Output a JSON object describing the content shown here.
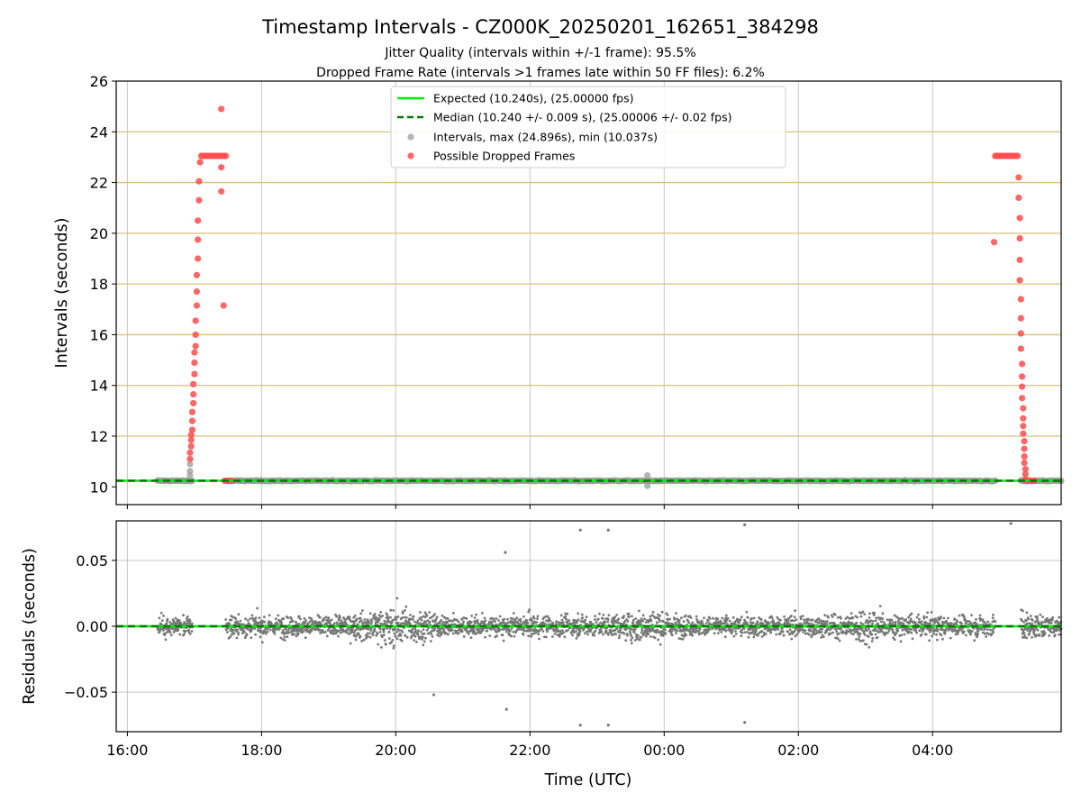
{
  "chart_data": [
    {
      "type": "scatter",
      "title": "Timestamp Intervals - CZ000K_20250201_162651_384298",
      "subtitle_1": "Jitter Quality (intervals within +/-1 frame): 95.5%",
      "subtitle_2": "Dropped Frame Rate (intervals >1 frames late within 50 FF files): 6.2%",
      "xlabel": "",
      "ylabel": "Intervals (seconds)",
      "xlim": [
        "2025-02-01 15:50",
        "2025-02-02 05:55"
      ],
      "ylim": [
        9.3,
        26
      ],
      "y_ticks": [
        "10",
        "12",
        "14",
        "16",
        "18",
        "20",
        "22",
        "24",
        "26"
      ],
      "x_tick_times": [
        "2025-02-01 16:00",
        "2025-02-01 18:00",
        "2025-02-01 20:00",
        "2025-02-01 22:00",
        "2025-02-02 00:00",
        "2025-02-02 02:00",
        "2025-02-02 04:00"
      ],
      "grid": true,
      "horizontal_frame_lines_color": "#d8c07a",
      "legend": {
        "placement": "top-center",
        "entries": [
          {
            "label": "Expected (10.240s), (25.00000 fps)",
            "style": "solid-line",
            "color": "#00ee00"
          },
          {
            "label": "Median (10.240 +/- 0.009 s), (25.00006 +/- 0.02 fps)",
            "style": "dashed-line",
            "color": "#007700"
          },
          {
            "label": "Intervals, max (24.896s), min (10.037s)",
            "style": "marker",
            "color": "#999999"
          },
          {
            "label": "Possible Dropped Frames",
            "style": "marker",
            "color": "#ff4c4c"
          }
        ]
      },
      "series": [
        {
          "name": "Expected (10.240s), (25.00000 fps)",
          "kind": "hline",
          "y": 10.24,
          "color": "#00ee00"
        },
        {
          "name": "Median (10.240 +/- 0.009 s), (25.00006 +/- 0.02 fps)",
          "kind": "hline",
          "y": 10.24,
          "color": "#007700"
        },
        {
          "name": "Intervals, max (24.896s), min (10.037s)",
          "kind": "scatter",
          "color": "#999999",
          "segments": [
            [
              "2025-02-01 16:27",
              "2025-02-01 16:58"
            ],
            [
              "2025-02-01 17:28",
              "2025-02-02 04:56"
            ],
            [
              "2025-02-02 05:19",
              "2025-02-02 05:55"
            ]
          ],
          "typical_y": 10.24,
          "points": [
            {
              "x": "2025-02-01 16:56",
              "y": 10.45
            },
            {
              "x": "2025-02-01 16:56",
              "y": 10.62
            },
            {
              "x": "2025-02-01 16:56",
              "y": 10.9
            },
            {
              "x": "2025-02-01 23:45",
              "y": 10.45
            },
            {
              "x": "2025-02-01 23:45",
              "y": 10.04
            }
          ]
        },
        {
          "name": "Possible Dropped Frames",
          "kind": "scatter",
          "color": "#ff4c4c",
          "points": [
            {
              "x": "2025-02-01 16:56",
              "y": 11.1
            },
            {
              "x": "2025-02-01 16:56",
              "y": 11.35
            },
            {
              "x": "2025-02-01 16:57",
              "y": 11.6
            },
            {
              "x": "2025-02-01 16:57",
              "y": 11.85
            },
            {
              "x": "2025-02-01 16:57",
              "y": 12.05
            },
            {
              "x": "2025-02-01 16:58",
              "y": 12.25
            },
            {
              "x": "2025-02-01 16:58",
              "y": 12.6
            },
            {
              "x": "2025-02-01 16:58",
              "y": 12.95
            },
            {
              "x": "2025-02-01 16:59",
              "y": 13.3
            },
            {
              "x": "2025-02-01 16:59",
              "y": 13.65
            },
            {
              "x": "2025-02-01 16:59",
              "y": 14.05
            },
            {
              "x": "2025-02-01 17:00",
              "y": 14.45
            },
            {
              "x": "2025-02-01 17:00",
              "y": 14.9
            },
            {
              "x": "2025-02-01 17:00",
              "y": 15.3
            },
            {
              "x": "2025-02-01 17:01",
              "y": 15.55
            },
            {
              "x": "2025-02-01 17:01",
              "y": 16.0
            },
            {
              "x": "2025-02-01 17:01",
              "y": 16.55
            },
            {
              "x": "2025-02-01 17:02",
              "y": 17.15
            },
            {
              "x": "2025-02-01 17:02",
              "y": 17.7
            },
            {
              "x": "2025-02-01 17:02",
              "y": 18.35
            },
            {
              "x": "2025-02-01 17:03",
              "y": 19.0
            },
            {
              "x": "2025-02-01 17:03",
              "y": 19.75
            },
            {
              "x": "2025-02-01 17:03",
              "y": 20.5
            },
            {
              "x": "2025-02-01 17:04",
              "y": 21.3
            },
            {
              "x": "2025-02-01 17:04",
              "y": 22.05
            },
            {
              "x": "2025-02-01 17:05",
              "y": 22.8
            },
            {
              "x": "2025-02-01 17:06",
              "y": 23.05
            },
            {
              "x": "2025-02-01 17:08",
              "y": 23.05
            },
            {
              "x": "2025-02-01 17:10",
              "y": 23.05
            },
            {
              "x": "2025-02-01 17:12",
              "y": 23.05
            },
            {
              "x": "2025-02-01 17:14",
              "y": 23.05
            },
            {
              "x": "2025-02-01 17:16",
              "y": 23.05
            },
            {
              "x": "2025-02-01 17:18",
              "y": 23.05
            },
            {
              "x": "2025-02-01 17:20",
              "y": 23.05
            },
            {
              "x": "2025-02-01 17:22",
              "y": 23.05
            },
            {
              "x": "2025-02-01 17:24",
              "y": 23.05
            },
            {
              "x": "2025-02-01 17:26",
              "y": 23.05
            },
            {
              "x": "2025-02-01 17:28",
              "y": 23.05
            },
            {
              "x": "2025-02-01 17:24",
              "y": 24.9
            },
            {
              "x": "2025-02-01 17:24",
              "y": 22.6
            },
            {
              "x": "2025-02-01 17:24",
              "y": 21.65
            },
            {
              "x": "2025-02-01 17:26",
              "y": 17.15
            },
            {
              "x": "2025-02-01 17:27",
              "y": 10.24
            },
            {
              "x": "2025-02-01 17:29",
              "y": 10.24
            },
            {
              "x": "2025-02-01 17:31",
              "y": 10.24
            },
            {
              "x": "2025-02-01 17:33",
              "y": 10.24
            },
            {
              "x": "2025-02-02 04:55",
              "y": 19.65
            },
            {
              "x": "2025-02-02 04:56",
              "y": 23.05
            },
            {
              "x": "2025-02-02 04:58",
              "y": 23.05
            },
            {
              "x": "2025-02-02 05:00",
              "y": 23.05
            },
            {
              "x": "2025-02-02 05:02",
              "y": 23.05
            },
            {
              "x": "2025-02-02 05:04",
              "y": 23.05
            },
            {
              "x": "2025-02-02 05:06",
              "y": 23.05
            },
            {
              "x": "2025-02-02 05:08",
              "y": 23.05
            },
            {
              "x": "2025-02-02 05:10",
              "y": 23.05
            },
            {
              "x": "2025-02-02 05:12",
              "y": 23.05
            },
            {
              "x": "2025-02-02 05:14",
              "y": 23.05
            },
            {
              "x": "2025-02-02 05:16",
              "y": 23.05
            },
            {
              "x": "2025-02-02 05:17",
              "y": 22.2
            },
            {
              "x": "2025-02-02 05:17",
              "y": 21.4
            },
            {
              "x": "2025-02-02 05:18",
              "y": 20.6
            },
            {
              "x": "2025-02-02 05:18",
              "y": 19.8
            },
            {
              "x": "2025-02-02 05:18",
              "y": 18.95
            },
            {
              "x": "2025-02-02 05:18",
              "y": 18.15
            },
            {
              "x": "2025-02-02 05:19",
              "y": 17.4
            },
            {
              "x": "2025-02-02 05:19",
              "y": 16.65
            },
            {
              "x": "2025-02-02 05:19",
              "y": 16.05
            },
            {
              "x": "2025-02-02 05:19",
              "y": 15.45
            },
            {
              "x": "2025-02-02 05:20",
              "y": 14.85
            },
            {
              "x": "2025-02-02 05:20",
              "y": 14.35
            },
            {
              "x": "2025-02-02 05:20",
              "y": 13.95
            },
            {
              "x": "2025-02-02 05:20",
              "y": 13.5
            },
            {
              "x": "2025-02-02 05:21",
              "y": 13.1
            },
            {
              "x": "2025-02-02 05:21",
              "y": 12.7
            },
            {
              "x": "2025-02-02 05:21",
              "y": 12.4
            },
            {
              "x": "2025-02-02 05:21",
              "y": 12.1
            },
            {
              "x": "2025-02-02 05:22",
              "y": 11.8
            },
            {
              "x": "2025-02-02 05:22",
              "y": 11.5
            },
            {
              "x": "2025-02-02 05:22",
              "y": 11.2
            },
            {
              "x": "2025-02-02 05:22",
              "y": 10.95
            },
            {
              "x": "2025-02-02 05:23",
              "y": 10.7
            },
            {
              "x": "2025-02-02 05:23",
              "y": 10.5
            },
            {
              "x": "2025-02-02 05:23",
              "y": 10.3
            },
            {
              "x": "2025-02-02 05:24",
              "y": 10.24
            },
            {
              "x": "2025-02-02 05:25",
              "y": 10.24
            },
            {
              "x": "2025-02-02 05:27",
              "y": 10.24
            },
            {
              "x": "2025-02-02 05:29",
              "y": 10.24
            },
            {
              "x": "2025-02-02 05:31",
              "y": 10.24
            }
          ]
        }
      ]
    },
    {
      "type": "scatter",
      "title": "",
      "xlabel": "Time (UTC)",
      "ylabel": "Residuals (seconds)",
      "xlim": [
        "2025-02-01 15:50",
        "2025-02-02 05:55"
      ],
      "ylim": [
        -0.08,
        0.08
      ],
      "y_ticks": [
        "0.05",
        "0.00",
        "−0.05"
      ],
      "x_ticks": [
        "16:00",
        "18:00",
        "20:00",
        "22:00",
        "00:00",
        "02:00",
        "04:00"
      ],
      "x_tick_times": [
        "2025-02-01 16:00",
        "2025-02-01 18:00",
        "2025-02-01 20:00",
        "2025-02-01 22:00",
        "2025-02-02 00:00",
        "2025-02-02 02:00",
        "2025-02-02 04:00"
      ],
      "grid": true,
      "series": [
        {
          "kind": "hline",
          "y": 0,
          "color": "#00ee00"
        },
        {
          "kind": "hline",
          "y": 0,
          "color": "#007700"
        },
        {
          "kind": "scatter",
          "color": "#777777",
          "segments": [
            [
              "2025-02-01 16:27",
              "2025-02-01 16:58"
            ],
            [
              "2025-02-01 17:28",
              "2025-02-02 04:56"
            ],
            [
              "2025-02-02 05:19",
              "2025-02-02 05:55"
            ]
          ],
          "typical_spread": 0.01,
          "outliers": [
            {
              "x": "2025-02-01 21:38",
              "y": 0.056
            },
            {
              "x": "2025-02-01 22:45",
              "y": 0.073
            },
            {
              "x": "2025-02-01 23:10",
              "y": 0.073
            },
            {
              "x": "2025-02-02 01:12",
              "y": 0.077
            },
            {
              "x": "2025-02-02 05:10",
              "y": 0.078
            },
            {
              "x": "2025-02-01 20:34",
              "y": -0.052
            },
            {
              "x": "2025-02-01 21:39",
              "y": -0.063
            },
            {
              "x": "2025-02-01 22:45",
              "y": -0.075
            },
            {
              "x": "2025-02-01 23:10",
              "y": -0.075
            },
            {
              "x": "2025-02-02 01:12",
              "y": -0.073
            }
          ]
        }
      ]
    }
  ]
}
